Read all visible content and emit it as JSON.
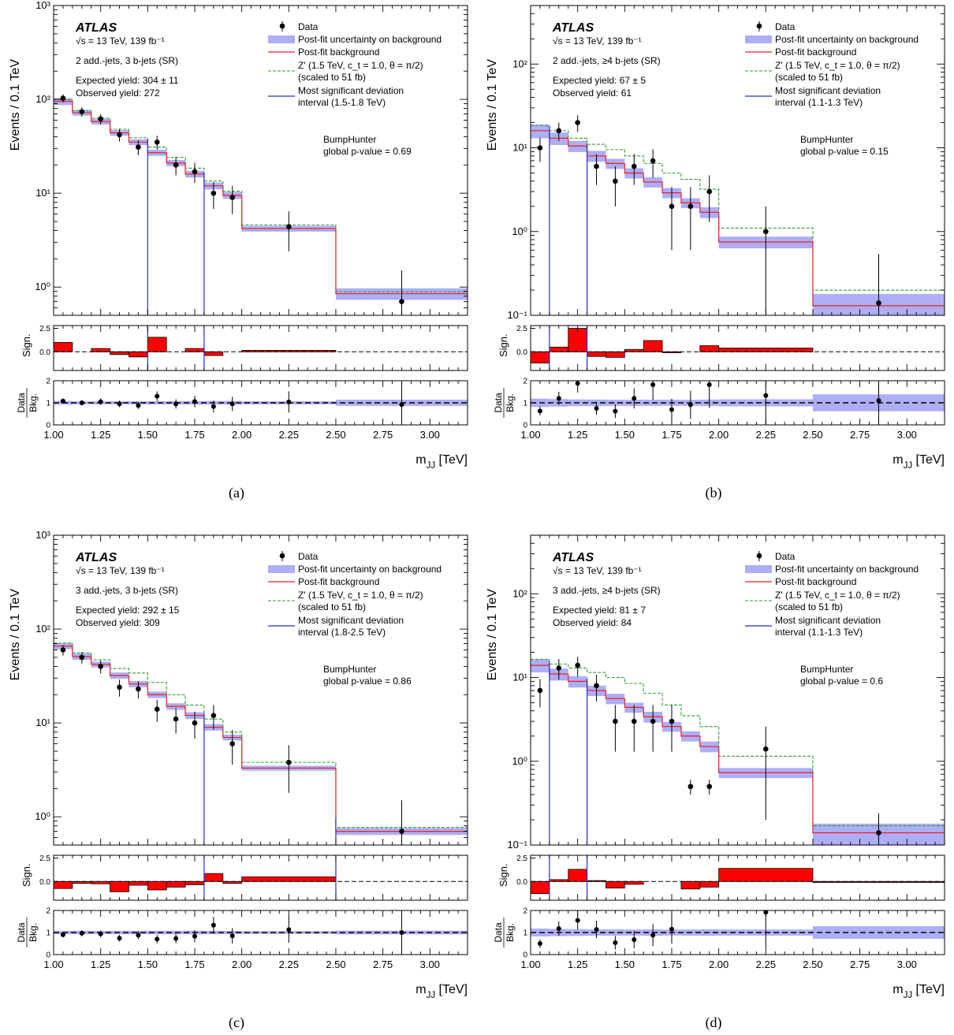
{
  "figure": {
    "atlas_label": "ATLAS",
    "energy_label": "√s = 13 TeV, 139 fb⁻¹",
    "ylabel": "Events / 0.1 TeV",
    "xlabel": "m",
    "xlabel_sub": "JJ",
    "xlabel_unit": " [TeV]",
    "sig_label": "Sign.",
    "ratio_label_top": "Data",
    "ratio_label_bottom": "Bkg.",
    "bumphunter_title": "BumpHunter",
    "legend": {
      "data": "Data",
      "uncertainty": "Post-fit uncertainty on background",
      "background": "Post-fit background",
      "signal_line1": "Z' (1.5 TeV, c_t = 1.0, θ = π/2)",
      "signal_line2": "(scaled to 51 fb)",
      "deviation_line1": "Most significant deviation",
      "deviation_line2": "interval"
    },
    "colors": {
      "uncertainty_band": "#aeaef5",
      "background_line": "#e8202a",
      "signal_line": "#2e9e2e",
      "deviation_line": "#2230c8",
      "significance_bar": "#ff0000"
    }
  },
  "chart_data": [
    {
      "type": "bar",
      "caption": "(a)",
      "region": "2 add.-jets, 3 b-jets (SR)",
      "expected_yield": "Expected yield: 304 ± 11",
      "observed_yield": "Observed yield: 272",
      "deviation_interval": "(1.5-1.8 TeV)",
      "global_pvalue": "global p-value = 0.69",
      "bin_edges": [
        1.0,
        1.1,
        1.2,
        1.3,
        1.4,
        1.5,
        1.6,
        1.7,
        1.8,
        1.9,
        2.0,
        2.5,
        3.2
      ],
      "background": [
        95,
        72,
        58,
        44,
        35,
        27,
        21,
        16,
        12,
        9.5,
        4.2,
        0.85
      ],
      "bkg_uncertainty": [
        8,
        5,
        4,
        3,
        2.5,
        2,
        1.6,
        1.3,
        1,
        0.8,
        0.3,
        0.12
      ],
      "signal_plus_bkg": [
        99,
        76,
        63,
        48,
        39,
        31,
        24,
        18.5,
        13.5,
        10.5,
        4.6,
        0.89
      ],
      "data": [
        103,
        74,
        62,
        42,
        31,
        35,
        20,
        17,
        10,
        9,
        4.4,
        0.7
      ],
      "data_err": [
        10,
        8.6,
        7.9,
        6.5,
        5.6,
        5.9,
        4.5,
        4.1,
        3.2,
        3,
        2,
        0.8
      ],
      "significance": [
        1.0,
        0.0,
        0.35,
        -0.3,
        -0.55,
        1.55,
        0.0,
        0.35,
        -0.4,
        0.0,
        0.15,
        0.0
      ],
      "ratio": [
        1.08,
        1.0,
        1.05,
        0.95,
        0.88,
        1.3,
        0.95,
        1.06,
        0.83,
        0.95,
        1.04,
        0.92
      ],
      "ratio_err": [
        0.11,
        0.12,
        0.14,
        0.15,
        0.16,
        0.22,
        0.21,
        0.26,
        0.27,
        0.32,
        0.48,
        1.0
      ],
      "deviation_lines": [
        1.5,
        1.8
      ],
      "ylim": [
        0.5,
        1000
      ],
      "yticks": [
        "10⁰",
        "10¹",
        "10²",
        "10³"
      ],
      "xticks": [
        "1.00",
        "1.25",
        "1.50",
        "1.75",
        "2.00",
        "2.25",
        "2.50",
        "2.75",
        "3.00"
      ],
      "sig_ticks": [
        "2.5",
        "0.0"
      ],
      "ratio_ticks": [
        "2",
        "1",
        "0"
      ]
    },
    {
      "type": "bar",
      "caption": "(b)",
      "region": "2 add.-jets, ≥4 b-jets (SR)",
      "expected_yield": "Expected yield: 67 ± 5",
      "observed_yield": "Observed yield: 61",
      "deviation_interval": "(1.1-1.3 TeV)",
      "global_pvalue": "global p-value = 0.15",
      "bin_edges": [
        1.0,
        1.1,
        1.2,
        1.3,
        1.4,
        1.5,
        1.6,
        1.7,
        1.8,
        1.9,
        2.0,
        2.5,
        3.2
      ],
      "background": [
        16,
        13,
        10.5,
        8,
        6.5,
        5,
        3.9,
        2.9,
        2.2,
        1.7,
        0.75,
        0.13
      ],
      "bkg_uncertainty": [
        3,
        2.2,
        1.6,
        1.2,
        0.9,
        0.7,
        0.55,
        0.4,
        0.3,
        0.25,
        0.12,
        0.05
      ],
      "signal_plus_bkg": [
        18.5,
        16,
        13,
        11,
        9.5,
        8,
        6.5,
        5,
        4.2,
        3.2,
        1.1,
        0.2
      ],
      "data": [
        10,
        16,
        20,
        6,
        4,
        6,
        7,
        2,
        2,
        3,
        1,
        0.14
      ],
      "data_err": [
        3.2,
        4,
        4.5,
        2.4,
        2,
        2.4,
        2.6,
        1.4,
        1.4,
        1.7,
        1,
        0.4
      ],
      "significance": [
        -1.2,
        0.5,
        2.5,
        -0.5,
        -0.6,
        0.25,
        1.2,
        -0.1,
        0.0,
        0.65,
        0.4,
        0.0
      ],
      "ratio": [
        0.63,
        1.2,
        1.88,
        0.75,
        0.62,
        1.2,
        1.82,
        0.69,
        0.91,
        1.82,
        1.33,
        1.1
      ],
      "ratio_err": [
        0.2,
        0.3,
        0.42,
        0.3,
        0.31,
        0.46,
        0.69,
        0.49,
        0.64,
        1.05,
        1.33,
        3.0
      ],
      "deviation_lines": [
        1.1,
        1.3
      ],
      "ylim": [
        0.1,
        500
      ],
      "yticks": [
        "10⁻¹",
        "10⁰",
        "10¹",
        "10²"
      ],
      "xticks": [
        "1.00",
        "1.25",
        "1.50",
        "1.75",
        "2.00",
        "2.25",
        "2.50",
        "2.75",
        "3.00"
      ],
      "sig_ticks": [
        "2.5",
        "0.0"
      ],
      "ratio_ticks": [
        "2",
        "1",
        "0"
      ]
    },
    {
      "type": "bar",
      "caption": "(c)",
      "region": "3 add.-jets, 3 b-jets (SR)",
      "expected_yield": "Expected yield: 292 ± 15",
      "observed_yield": "Observed yield: 309",
      "deviation_interval": "(1.8-2.5 TeV)",
      "global_pvalue": "global p-value = 0.86",
      "bin_edges": [
        1.0,
        1.1,
        1.2,
        1.3,
        1.4,
        1.5,
        1.6,
        1.7,
        1.8,
        1.9,
        2.0,
        2.5,
        3.2
      ],
      "background": [
        66,
        51,
        42,
        32,
        26,
        20,
        15,
        12,
        9,
        7,
        3.3,
        0.7
      ],
      "bkg_uncertainty": [
        5,
        4,
        3,
        2.5,
        2,
        1.6,
        1.2,
        1,
        0.7,
        0.5,
        0.2,
        0.06
      ],
      "signal_plus_bkg": [
        71,
        56,
        47,
        38,
        34,
        27,
        20,
        15.5,
        11,
        8,
        3.8,
        0.77
      ],
      "data": [
        60,
        50,
        40,
        24,
        23,
        14,
        11,
        10,
        12,
        6,
        3.8,
        0.7
      ],
      "data_err": [
        7.7,
        7.1,
        6.3,
        4.9,
        4.8,
        3.7,
        3.3,
        3.2,
        3.5,
        2.4,
        2,
        0.8
      ],
      "significance": [
        -0.75,
        -0.2,
        -0.25,
        -1.1,
        -0.4,
        -0.9,
        -0.6,
        -0.35,
        0.85,
        -0.2,
        0.5,
        0.0
      ],
      "ratio": [
        0.9,
        0.97,
        0.94,
        0.74,
        0.88,
        0.7,
        0.73,
        0.83,
        1.33,
        0.85,
        1.13,
        1.0
      ],
      "ratio_err": [
        0.12,
        0.14,
        0.15,
        0.15,
        0.18,
        0.19,
        0.22,
        0.27,
        0.38,
        0.35,
        0.6,
        1.4
      ],
      "deviation_lines": [
        1.8,
        2.5
      ],
      "ylim": [
        0.5,
        1000
      ],
      "yticks": [
        "10⁰",
        "10¹",
        "10²",
        "10³"
      ],
      "xticks": [
        "1.00",
        "1.25",
        "1.50",
        "1.75",
        "2.00",
        "2.25",
        "2.50",
        "2.75",
        "3.00"
      ],
      "sig_ticks": [
        "2.5",
        "0.0"
      ],
      "ratio_ticks": [
        "2",
        "1",
        "0"
      ]
    },
    {
      "type": "bar",
      "caption": "(d)",
      "region": "3 add.-jets, ≥4 b-jets (SR)",
      "expected_yield": "Expected yield: 81 ± 7",
      "observed_yield": "Observed yield: 84",
      "deviation_interval": "(1.1-1.3 TeV)",
      "global_pvalue": "global p-value = 0.6",
      "bin_edges": [
        1.0,
        1.1,
        1.2,
        1.3,
        1.4,
        1.5,
        1.6,
        1.7,
        1.8,
        1.9,
        2.0,
        2.5,
        3.2
      ],
      "background": [
        14,
        11,
        9,
        7,
        5.6,
        4.4,
        3.4,
        2.6,
        2,
        1.5,
        0.73,
        0.14
      ],
      "bkg_uncertainty": [
        2.5,
        1.8,
        1.4,
        1,
        0.8,
        0.6,
        0.5,
        0.35,
        0.28,
        0.22,
        0.1,
        0.04
      ],
      "signal_plus_bkg": [
        16.5,
        14.5,
        13,
        11.5,
        10,
        8.5,
        6.5,
        4.7,
        3.5,
        2.6,
        1.15,
        0.17
      ],
      "data": [
        7,
        13,
        14,
        8,
        3,
        3,
        3,
        3,
        0.5,
        0.5,
        1.4,
        0.14
      ],
      "data_err": [
        2.6,
        3.6,
        3.7,
        2.8,
        1.7,
        1.7,
        1.7,
        1.7,
        0.1,
        0.1,
        1.2,
        0.1
      ],
      "significance": [
        -1.3,
        0.2,
        1.3,
        0.1,
        -0.7,
        -0.3,
        0.0,
        0.0,
        -0.8,
        -0.6,
        1.4,
        -0.1
      ],
      "ratio": [
        0.5,
        1.18,
        1.55,
        1.14,
        0.54,
        0.68,
        0.88,
        1.15,
        0.0,
        0.0,
        1.92,
        0.0
      ],
      "ratio_err": [
        0.19,
        0.33,
        0.41,
        0.4,
        0.31,
        0.39,
        0.5,
        0.65,
        0.0,
        0.0,
        1.64,
        0.0
      ],
      "deviation_lines": [
        1.1,
        1.3
      ],
      "ylim": [
        0.1,
        500
      ],
      "yticks": [
        "10⁻¹",
        "10⁰",
        "10¹",
        "10²"
      ],
      "xticks": [
        "1.00",
        "1.25",
        "1.50",
        "1.75",
        "2.00",
        "2.25",
        "2.50",
        "2.75",
        "3.00"
      ],
      "sig_ticks": [
        "2.5",
        "0.0"
      ],
      "ratio_ticks": [
        "2",
        "1",
        "0"
      ]
    }
  ]
}
